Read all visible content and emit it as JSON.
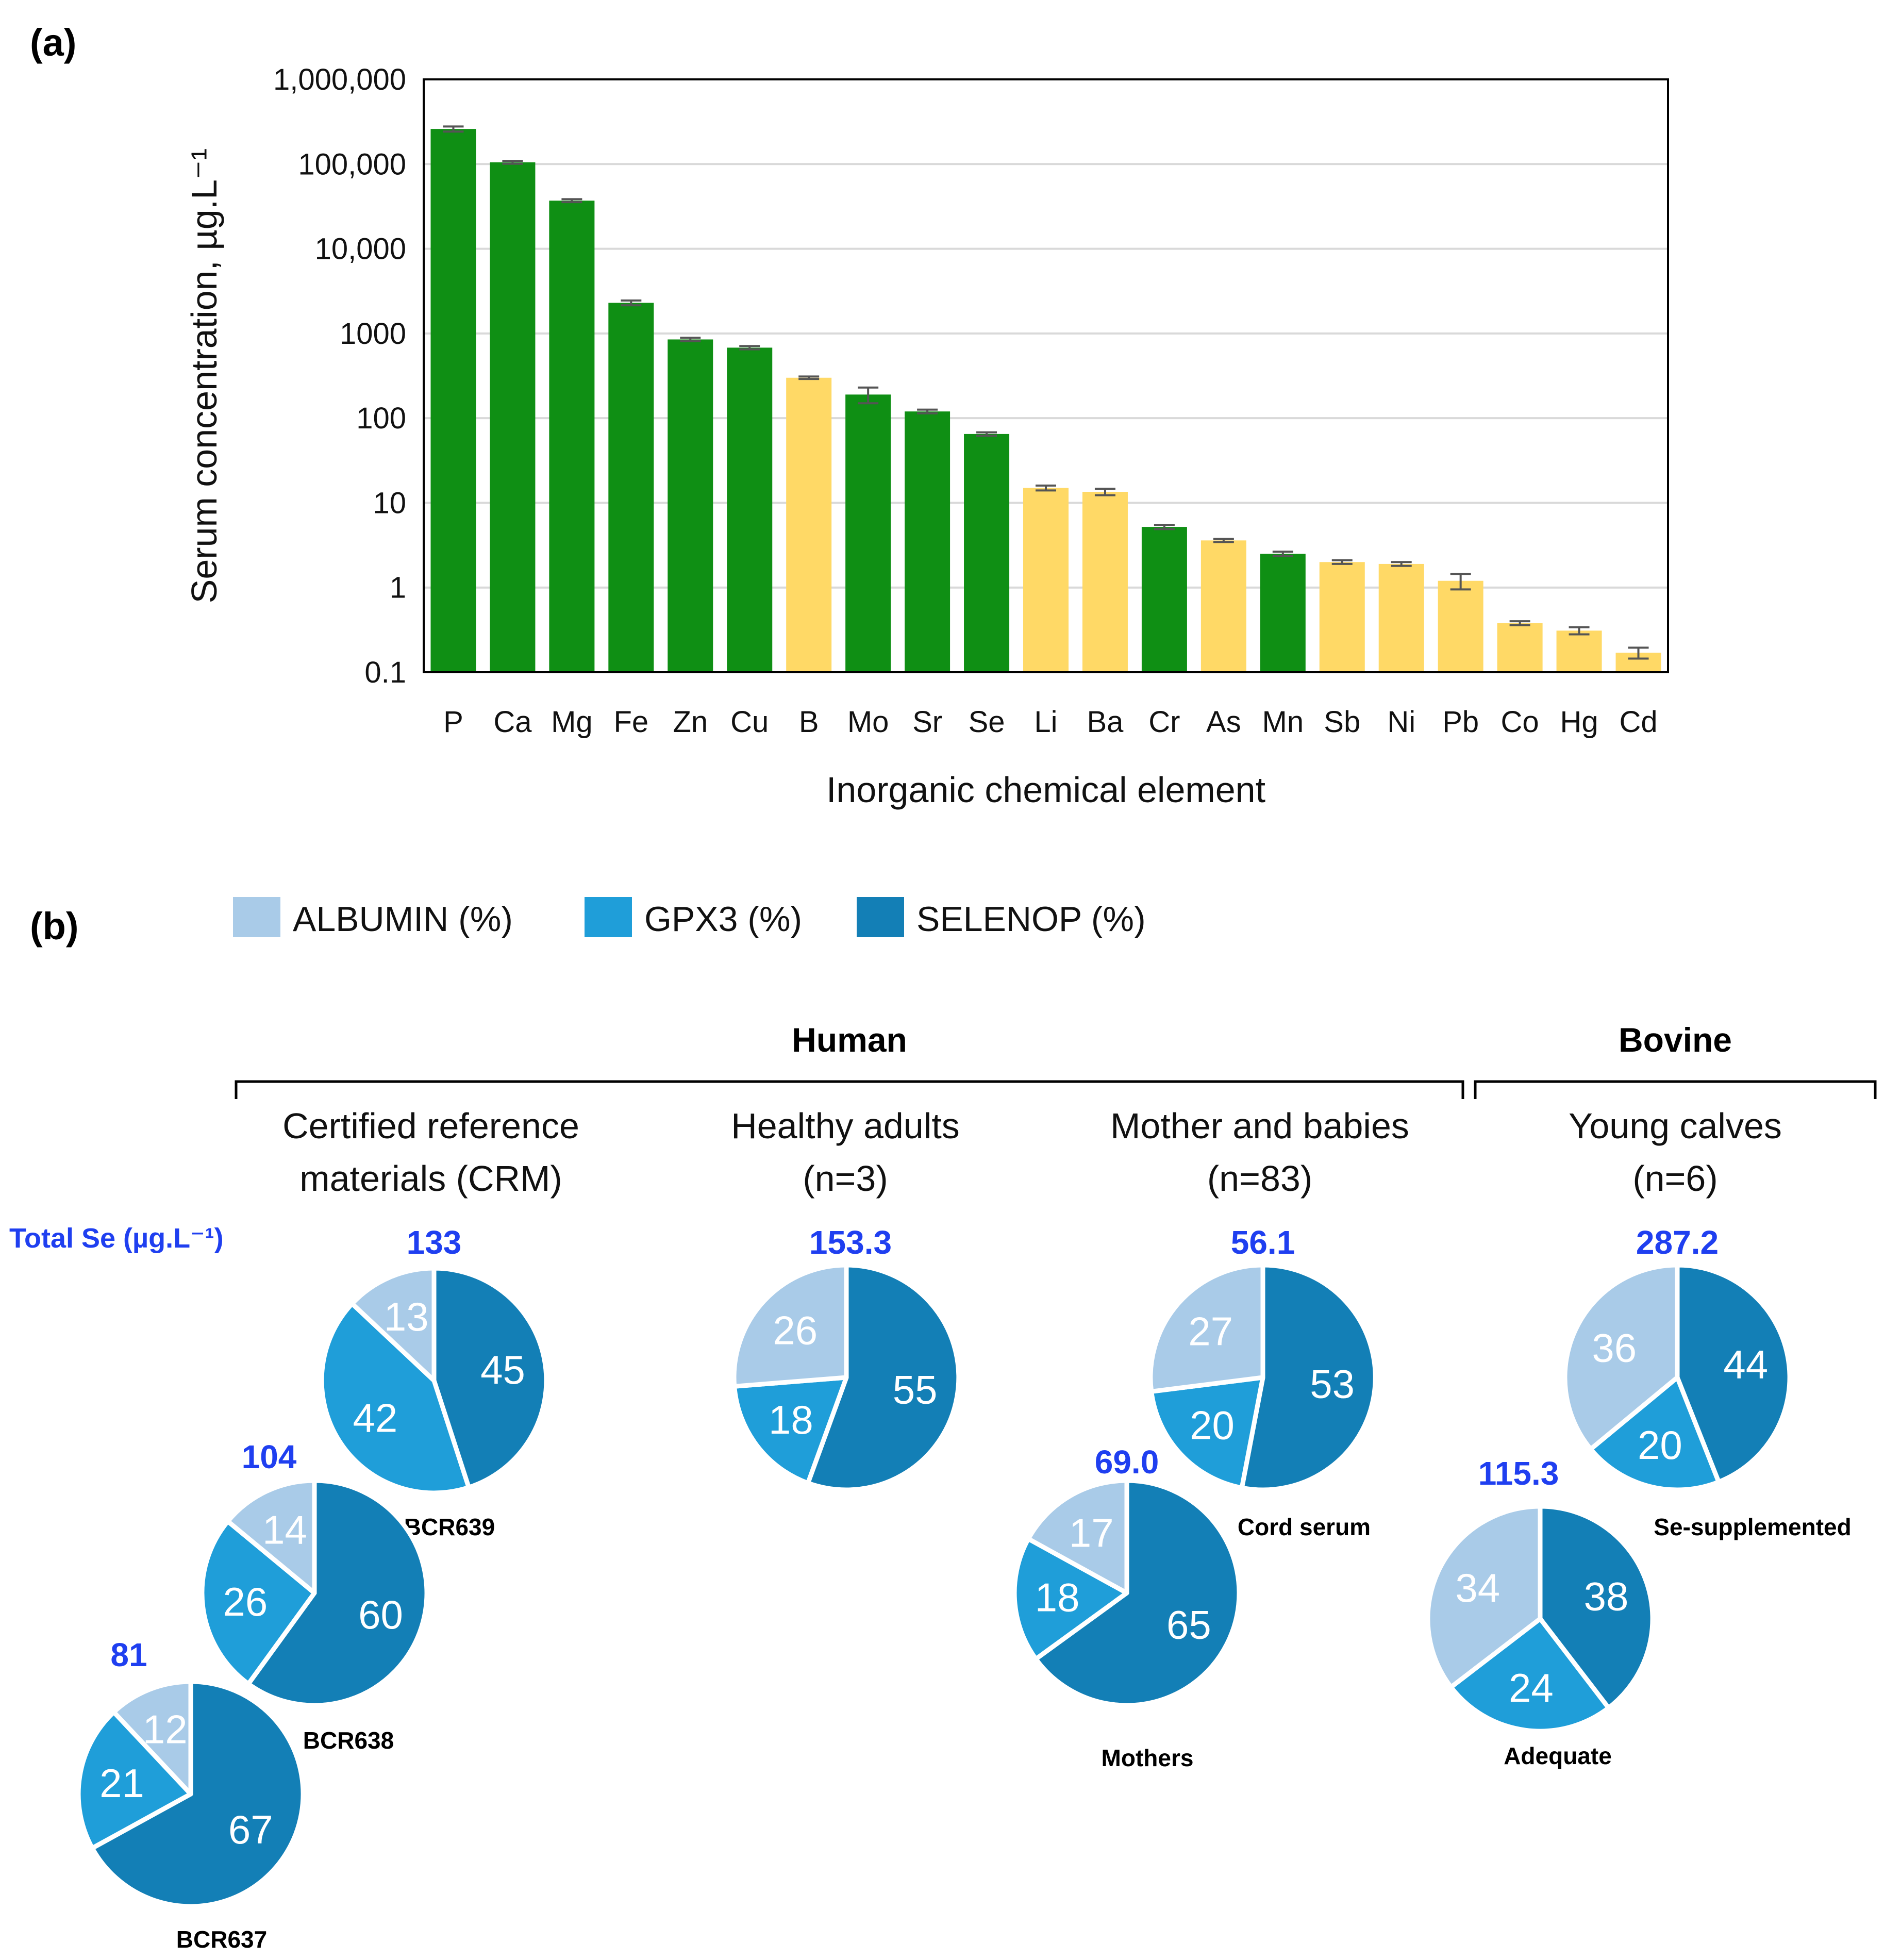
{
  "panel_a": {
    "label": "(a)"
  },
  "panel_b": {
    "label": "(b)"
  },
  "colors": {
    "essential": "#0f8f14",
    "non_essential": "#ffd966",
    "albumin": "#a9cbe8",
    "gpx3": "#1f9ed9",
    "selenop": "#137fb6",
    "total_text": "#1f3ff0",
    "error_bar": "#555555"
  },
  "chart_data": [
    {
      "type": "bar",
      "scale": "log",
      "title": "",
      "xlabel": "Inorganic chemical element",
      "ylabel": "Serum concentration, µg.L⁻¹",
      "ylim": [
        0.1,
        1000000
      ],
      "yticks": [
        0.1,
        1,
        10,
        100,
        1000,
        10000,
        100000,
        1000000
      ],
      "ytick_labels": [
        "0.1",
        "1",
        "10",
        "100",
        "1000",
        "10,000",
        "100,000",
        "1,000,000"
      ],
      "grid": true,
      "categories": [
        "P",
        "Ca",
        "Mg",
        "Fe",
        "Zn",
        "Cu",
        "B",
        "Mo",
        "Sr",
        "Se",
        "Li",
        "Ba",
        "Cr",
        "As",
        "Mn",
        "Sb",
        "Ni",
        "Pb",
        "Co",
        "Hg",
        "Cd"
      ],
      "values": [
        260000,
        105000,
        37000,
        2300,
        850,
        680,
        300,
        190,
        120,
        65,
        15,
        13.5,
        5.2,
        3.6,
        2.5,
        2.0,
        1.9,
        1.2,
        0.38,
        0.31,
        0.17
      ],
      "errors": [
        18000,
        4000,
        1500,
        150,
        40,
        30,
        10,
        40,
        6,
        3,
        1,
        1.2,
        0.3,
        0.15,
        0.15,
        0.1,
        0.1,
        0.25,
        0.02,
        0.03,
        0.025
      ],
      "essential": [
        true,
        true,
        true,
        true,
        true,
        true,
        false,
        true,
        true,
        true,
        false,
        false,
        true,
        false,
        true,
        false,
        false,
        false,
        false,
        false,
        false
      ]
    },
    {
      "type": "pie",
      "legend": [
        "ALBUMIN (%)",
        "GPX3 (%)",
        "SELENOP (%)"
      ],
      "total_label": "Total Se (µg.L⁻¹)",
      "groups": [
        {
          "name": "Human"
        },
        {
          "name": "Bovine"
        }
      ],
      "subgroups": [
        {
          "line1": "Certified reference",
          "line2": "materials (CRM)"
        },
        {
          "line1": "Healthy adults",
          "line2": "(n=3)"
        },
        {
          "line1": "Mother and babies",
          "line2": "(n=83)"
        },
        {
          "line1": "Young calves",
          "line2": "(n=6)"
        }
      ],
      "pies": [
        {
          "name": "BCR639",
          "total": "133",
          "albumin": 13,
          "gpx3": 42,
          "selenop": 45
        },
        {
          "name": "BCR638",
          "total": "104",
          "albumin": 14,
          "gpx3": 26,
          "selenop": 60
        },
        {
          "name": "BCR637",
          "total": "81",
          "albumin": 12,
          "gpx3": 21,
          "selenop": 67
        },
        {
          "name": "",
          "total": "153.3",
          "albumin": 26,
          "gpx3": 18,
          "selenop": 55
        },
        {
          "name": "Cord serum",
          "total": "56.1",
          "albumin": 27,
          "gpx3": 20,
          "selenop": 53
        },
        {
          "name": "Mothers",
          "total": "69.0",
          "albumin": 17,
          "gpx3": 18,
          "selenop": 65
        },
        {
          "name": "Se-supplemented",
          "total": "287.2",
          "albumin": 36,
          "gpx3": 20,
          "selenop": 44
        },
        {
          "name": "Adequate",
          "total": "115.3",
          "albumin": 34,
          "gpx3": 24,
          "selenop": 38
        }
      ]
    }
  ]
}
